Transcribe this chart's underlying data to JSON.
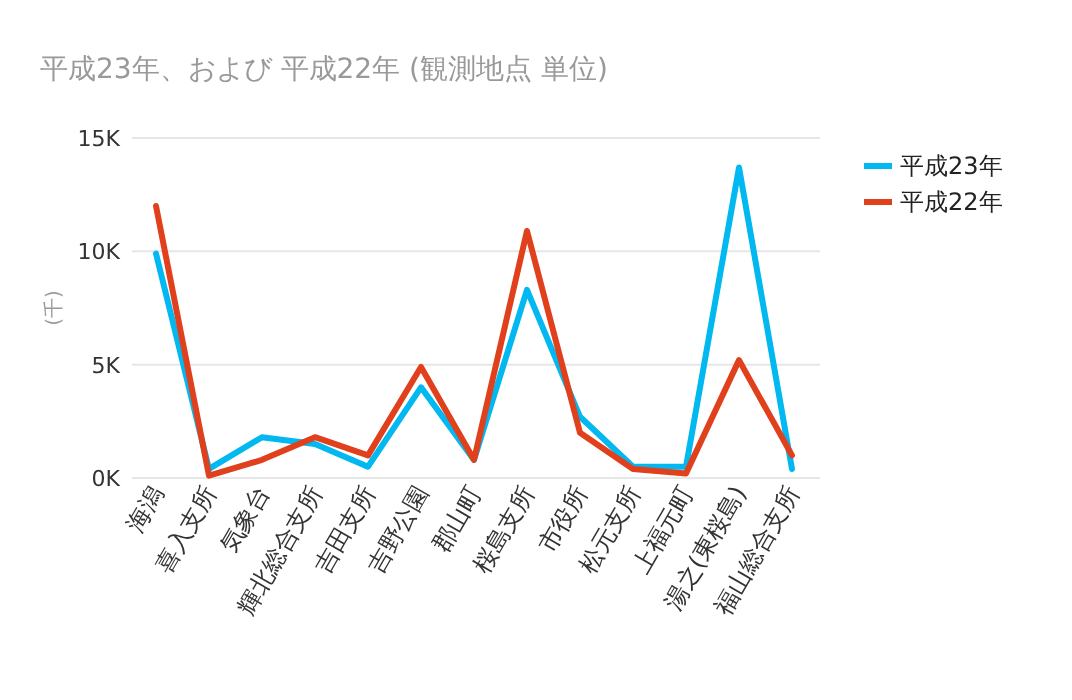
{
  "chart_data": {
    "type": "line",
    "title": "平成23年、および 平成22年 (観測地点 単位)",
    "ylabel": "(千)",
    "categories": [
      "海潟",
      "喜入支所",
      "気象台",
      "輝北総合支所",
      "吉田支所",
      "吉野公園",
      "郡山町",
      "桜島支所",
      "市役所",
      "松元支所",
      "上福元町",
      "湯之(東桜島)",
      "福山総合支所"
    ],
    "series": [
      {
        "name": "平成23年",
        "color": "#01b8f0",
        "values": [
          9.9,
          0.4,
          1.8,
          1.5,
          0.5,
          4.0,
          0.8,
          8.3,
          2.7,
          0.5,
          0.5,
          13.7,
          0.4
        ]
      },
      {
        "name": "平成22年",
        "color": "#e0401c",
        "values": [
          12.0,
          0.1,
          0.8,
          1.8,
          1.0,
          4.9,
          0.8,
          10.9,
          2.0,
          0.4,
          0.2,
          5.2,
          1.0
        ]
      }
    ],
    "ylim": [
      0,
      15
    ],
    "yticks": [
      {
        "value": 0,
        "label": "0K"
      },
      {
        "value": 5,
        "label": "5K"
      },
      {
        "value": 10,
        "label": "10K"
      },
      {
        "value": 15,
        "label": "15K"
      }
    ],
    "grid": "y",
    "legend": "top right",
    "marker": "none",
    "line_style": "solid"
  }
}
